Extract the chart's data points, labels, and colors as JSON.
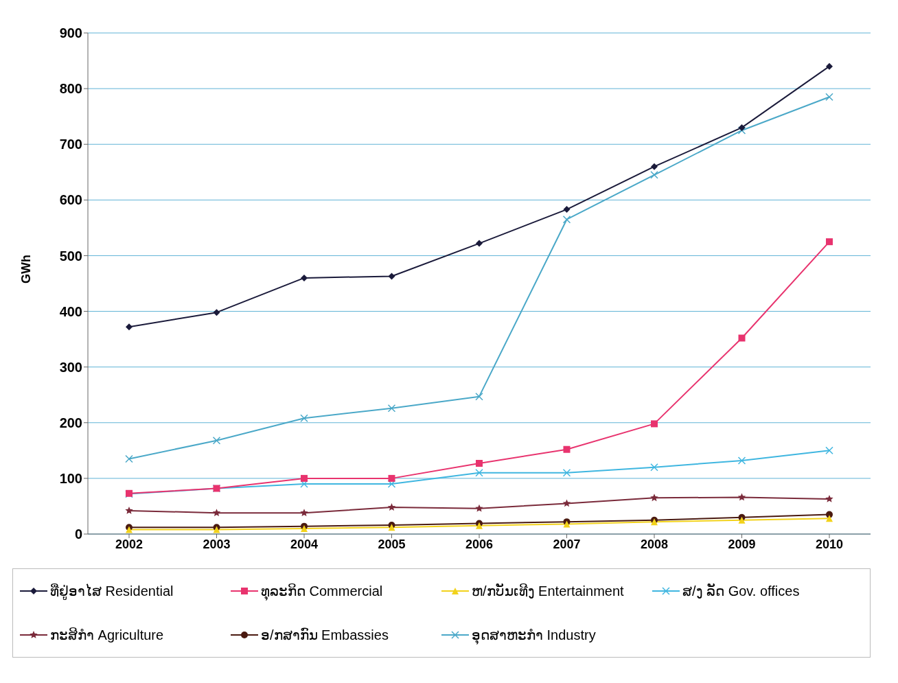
{
  "chart_data": {
    "type": "line",
    "ylabel": "GWh",
    "categories": [
      "2002",
      "2003",
      "2004",
      "2005",
      "2006",
      "2007",
      "2008",
      "2009",
      "2010"
    ],
    "ylim": [
      0,
      900
    ],
    "yticks": [
      0,
      100,
      200,
      300,
      400,
      500,
      600,
      700,
      800,
      900
    ],
    "grid": "y",
    "legend": "bottom",
    "series": [
      {
        "name": "ທີ່ຢູ່ອາໄສ Residential",
        "color": "#1a1a3a",
        "marker": "diamond",
        "values": [
          372,
          398,
          460,
          463,
          522,
          583,
          660,
          730,
          840
        ]
      },
      {
        "name": "ທຸລະກິດ Commercial",
        "color": "#e8336e",
        "marker": "square",
        "values": [
          73,
          82,
          100,
          100,
          127,
          152,
          198,
          352,
          525
        ]
      },
      {
        "name": "ຫ/ກບັນເທີງ Entertainment",
        "color": "#f2d21b",
        "marker": "triangle",
        "values": [
          8,
          8,
          10,
          12,
          15,
          18,
          22,
          25,
          28
        ]
      },
      {
        "name": "ສ/ງ ລັດ Gov. offices",
        "color": "#3fb6e0",
        "marker": "cross",
        "values": [
          72,
          82,
          90,
          90,
          110,
          110,
          120,
          132,
          150
        ]
      },
      {
        "name": "ກະສິກຳ Agriculture",
        "color": "#7a2a3a",
        "marker": "star",
        "values": [
          42,
          38,
          38,
          48,
          46,
          55,
          65,
          66,
          63
        ]
      },
      {
        "name": "ອ/ກສາກົນ Embassies",
        "color": "#4a1a10",
        "marker": "circle",
        "values": [
          12,
          12,
          14,
          16,
          19,
          22,
          25,
          30,
          35
        ]
      },
      {
        "name": "ອຸດສາຫະກຳ Industry",
        "color": "#4aa8c8",
        "marker": "cross",
        "values": [
          135,
          168,
          208,
          226,
          247,
          565,
          645,
          725,
          785
        ]
      }
    ]
  }
}
